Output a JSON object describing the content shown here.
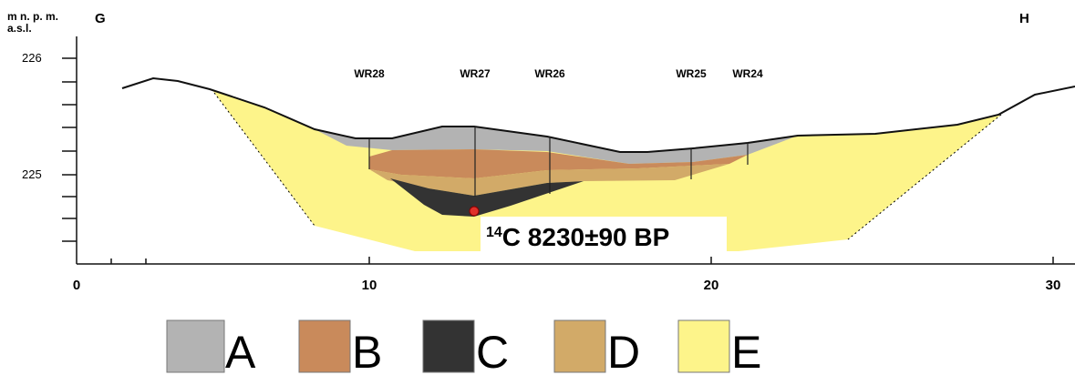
{
  "axis": {
    "y_label_1": "m n. p. m.",
    "y_label_2": "a.s.l.",
    "y_ticks": [
      "226",
      "225"
    ],
    "x_ticks": [
      "0",
      "10",
      "20",
      "30"
    ]
  },
  "section": {
    "start": "G",
    "end": "H"
  },
  "boreholes": [
    "WR28",
    "WR27",
    "WR26",
    "WR25",
    "WR24"
  ],
  "annotation": {
    "isotope": "14",
    "text": "C 8230±90 BP"
  },
  "legend": [
    "A",
    "B",
    "C",
    "D",
    "E"
  ]
}
